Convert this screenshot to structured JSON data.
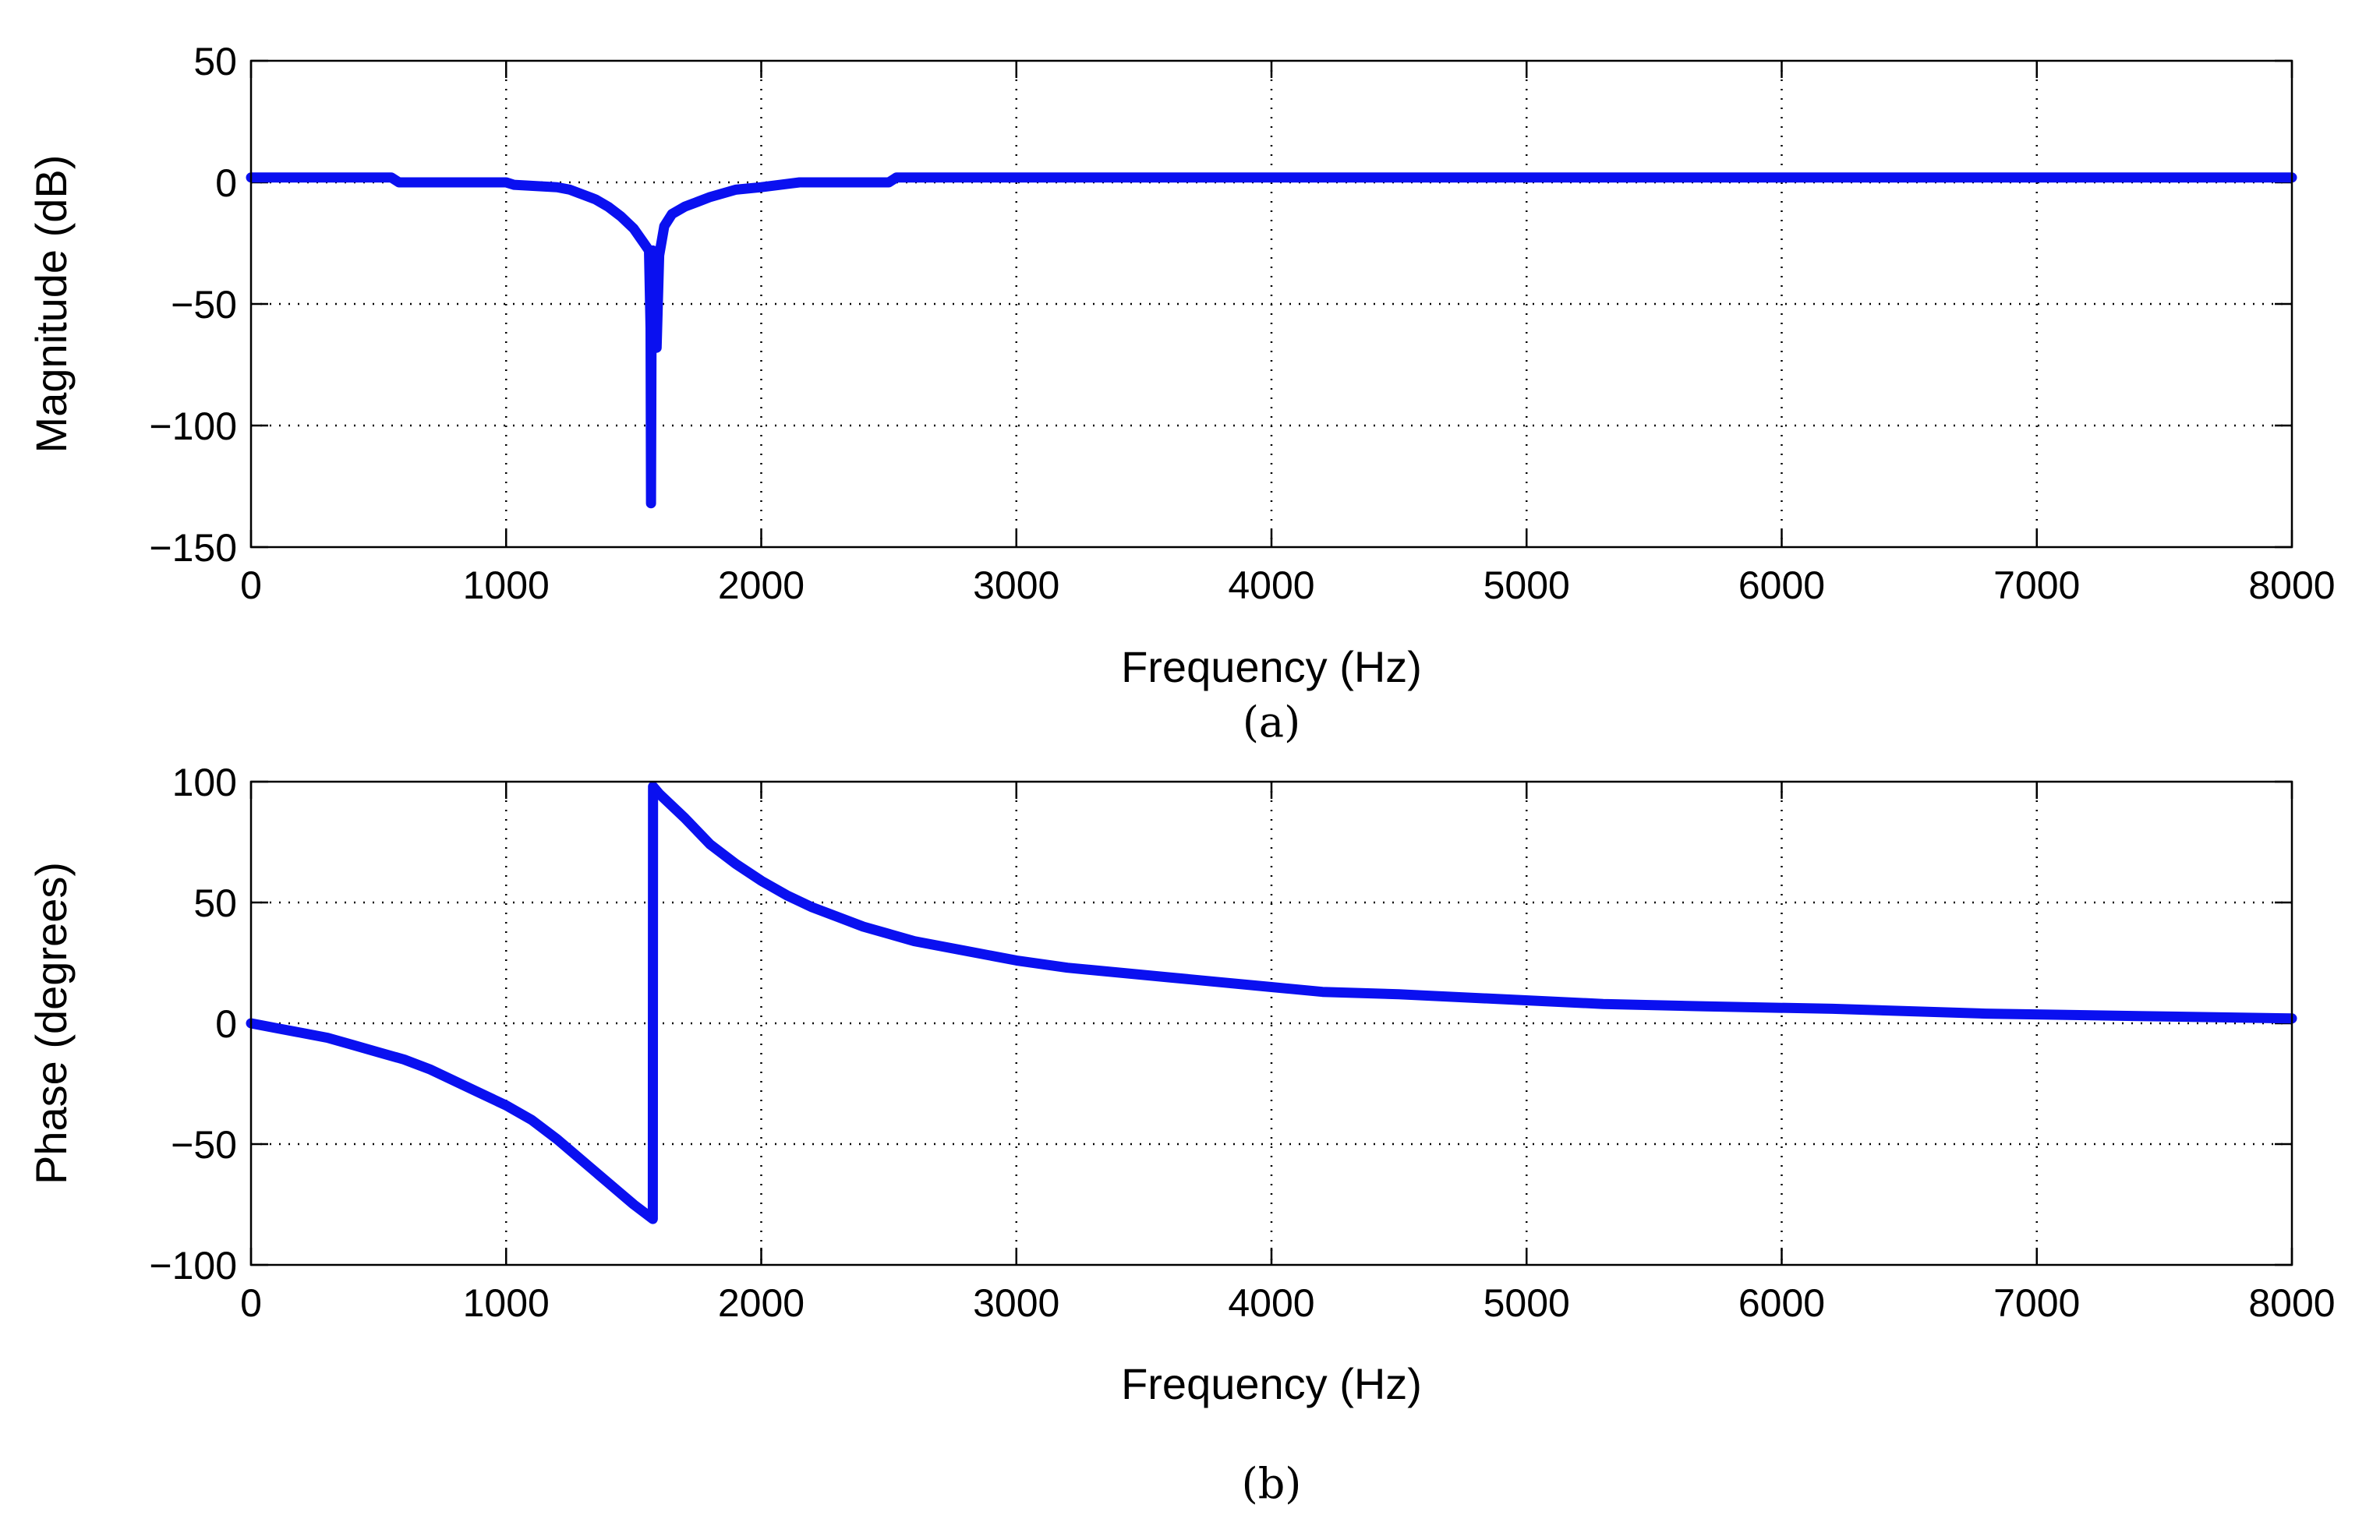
{
  "colors": {
    "series": "#0a10f0"
  },
  "chart_data": [
    {
      "type": "line",
      "id": "magnitude",
      "title": "",
      "caption": "(a)",
      "xlabel": "Frequency (Hz)",
      "ylabel": "Magnitude (dB)",
      "xlim": [
        0,
        8000
      ],
      "ylim": [
        -150,
        50
      ],
      "xticks": [
        0,
        1000,
        2000,
        3000,
        4000,
        5000,
        6000,
        7000,
        8000
      ],
      "yticks": [
        50,
        0,
        -50,
        -100,
        -150
      ],
      "xtick_labels": [
        "0",
        "1000",
        "2000",
        "3000",
        "4000",
        "5000",
        "6000",
        "7000",
        "8000"
      ],
      "ytick_labels": [
        "50",
        "0",
        "−50",
        "−100",
        "−150"
      ],
      "grid": true,
      "series": [
        {
          "name": "magnitude",
          "x": [
            0,
            550,
            580,
            1000,
            1030,
            1200,
            1250,
            1300,
            1350,
            1400,
            1450,
            1500,
            1540,
            1560,
            1566,
            1568,
            1570,
            1575,
            1580,
            1590,
            1600,
            1620,
            1650,
            1700,
            1750,
            1800,
            1900,
            2000,
            2150,
            2500,
            2530,
            8000
          ],
          "y": [
            2,
            2,
            0,
            0,
            -1,
            -2,
            -3,
            -5,
            -7,
            -10,
            -14,
            -19,
            -25,
            -28,
            -60,
            -132,
            -60,
            -28,
            -35,
            -68,
            -30,
            -18,
            -13,
            -10,
            -8,
            -6,
            -3,
            -2,
            0,
            0,
            2,
            2
          ]
        }
      ]
    },
    {
      "type": "line",
      "id": "phase",
      "title": "",
      "caption": "(b)",
      "xlabel": "Frequency (Hz)",
      "ylabel": "Phase (degrees)",
      "xlim": [
        0,
        8000
      ],
      "ylim": [
        -100,
        100
      ],
      "xticks": [
        0,
        1000,
        2000,
        3000,
        4000,
        5000,
        6000,
        7000,
        8000
      ],
      "yticks": [
        100,
        50,
        0,
        -50,
        -100
      ],
      "xtick_labels": [
        "0",
        "1000",
        "2000",
        "3000",
        "4000",
        "5000",
        "6000",
        "7000",
        "8000"
      ],
      "ytick_labels": [
        "100",
        "50",
        "0",
        "−50",
        "−100"
      ],
      "grid": true,
      "series": [
        {
          "name": "phase",
          "x": [
            0,
            100,
            200,
            300,
            400,
            500,
            600,
            700,
            800,
            900,
            1000,
            1100,
            1200,
            1300,
            1400,
            1500,
            1575,
            1576,
            1600,
            1700,
            1800,
            1900,
            2000,
            2100,
            2200,
            2300,
            2400,
            2500,
            2600,
            2800,
            3000,
            3200,
            3400,
            3600,
            3800,
            4000,
            4200,
            4500,
            4900,
            5300,
            5700,
            6200,
            6800,
            7400,
            8000
          ],
          "y": [
            0,
            -2,
            -4,
            -6,
            -9,
            -12,
            -15,
            -19,
            -24,
            -29,
            -34,
            -40,
            -48,
            -57,
            -66,
            -75,
            -81,
            98,
            95,
            85,
            74,
            66,
            59,
            53,
            48,
            44,
            40,
            37,
            34,
            30,
            26,
            23,
            21,
            19,
            17,
            15,
            13,
            12,
            10,
            8,
            7,
            6,
            4,
            3,
            2
          ]
        }
      ]
    }
  ]
}
